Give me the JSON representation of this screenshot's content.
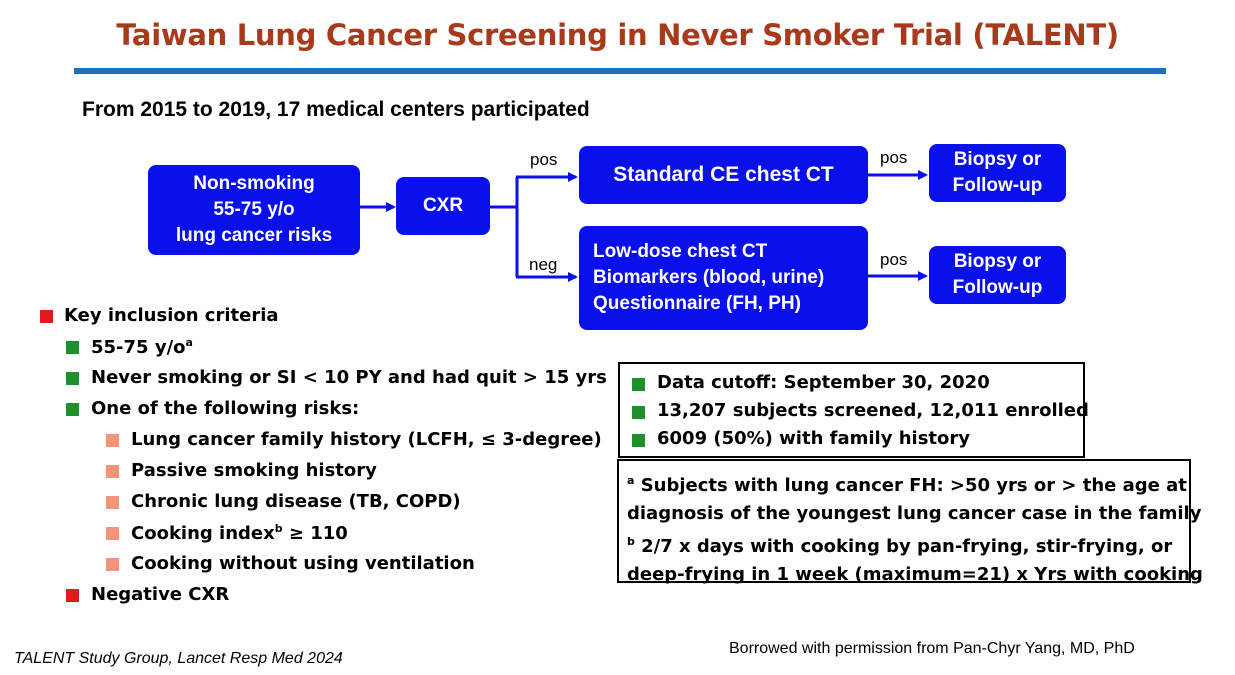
{
  "title": "Taiwan Lung Cancer Screening in Never Smoker Trial (TALENT)",
  "subtitle": "From 2015 to 2019, 17 medical centers participated",
  "flowchart": {
    "start": [
      "Non-smoking",
      "55-75 y/o",
      "lung cancer risks"
    ],
    "cxr": "CXR",
    "pos_label": "pos",
    "neg_label": "neg",
    "standard_ct": "Standard CE chest CT",
    "low_dose": [
      "Low-dose chest CT",
      "Biomarkers (blood, urine)",
      "Questionnaire (FH, PH)"
    ],
    "pos_label_right_top": "pos",
    "pos_label_right_bottom": "pos",
    "outcome_top": [
      "Biopsy or",
      "Follow-up"
    ],
    "outcome_bottom": [
      "Biopsy or",
      "Follow-up"
    ]
  },
  "criteria": {
    "heading": "Key inclusion criteria",
    "age": "55-75 y/o",
    "age_sup": "a",
    "never_smoking": "Never smoking or SI < 10 PY and had quit > 15 yrs",
    "risks_heading": "One of the following risks:",
    "risks": [
      {
        "text": "Lung cancer family history (LCFH, ≤ 3-degree)",
        "sup": "",
        "tail": ""
      },
      {
        "text": "Passive smoking history",
        "sup": "",
        "tail": ""
      },
      {
        "text": "Chronic lung disease (TB, COPD)",
        "sup": "",
        "tail": ""
      },
      {
        "text": "Cooking index",
        "sup": "b",
        "tail": " ≥ 110"
      },
      {
        "text": "Cooking without using ventilation",
        "sup": "",
        "tail": ""
      }
    ],
    "negative_cxr": "Negative CXR"
  },
  "data_panel": [
    "Data cutoff: September 30, 2020",
    "13,207 subjects screened, 12,011 enrolled",
    "6009 (50%) with family history"
  ],
  "footnotes": {
    "a_mark": "a",
    "a_text_1": " Subjects with lung cancer FH: >50 yrs or > the age at",
    "a_text_2": "diagnosis of the youngest lung cancer case in the family",
    "b_mark": "b",
    "b_text_1": " 2/7 x days with cooking by pan-frying, stir-frying, or",
    "b_text_2": "deep-frying in 1 week (maximum=21) x Yrs with cooking"
  },
  "citation": "TALENT Study Group, Lancet Resp Med 2024",
  "credit": "Borrowed with permission from Pan-Chyr Yang, MD, PhD",
  "colors": {
    "title": "#a8391b",
    "rule": "#1f6fbf",
    "box": "#0a10ec",
    "bullet_red": "#e0191b",
    "bullet_green": "#1e8f2a",
    "bullet_salmon": "#f4937a"
  }
}
